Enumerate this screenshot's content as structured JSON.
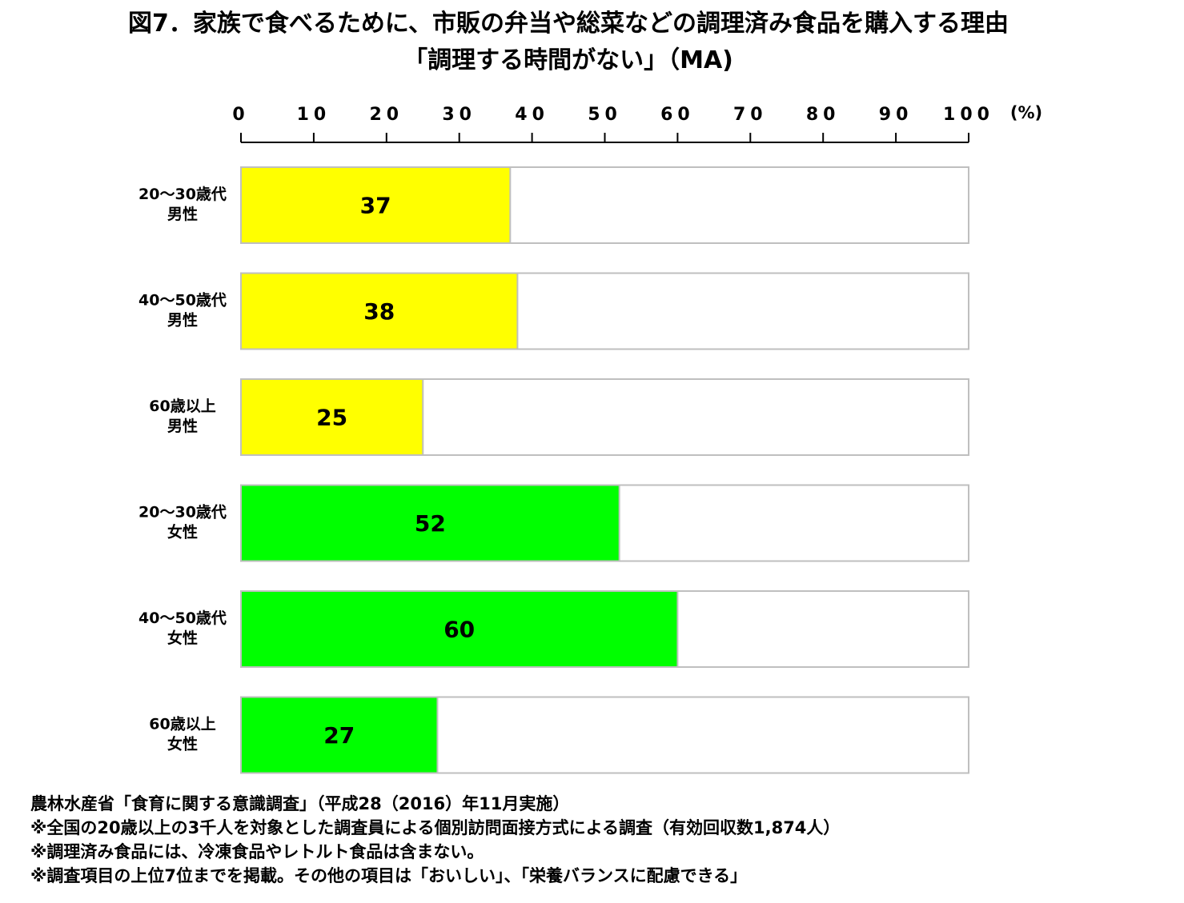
{
  "title_line1": "図7．家族で食べるために、市販の弁当や総菜などの調理済み食品を購入する理由",
  "title_line2": "「調理する時間がない」（MA)",
  "chart_data": {
    "type": "bar",
    "orientation": "horizontal",
    "x_ticks": [
      "0",
      "10",
      "20",
      "30",
      "40",
      "50",
      "60",
      "70",
      "80",
      "90",
      "100"
    ],
    "unit_label": "(%)",
    "xlim": [
      0,
      100
    ],
    "categories": [
      [
        "20～30歳代",
        "男性"
      ],
      [
        "40～50歳代",
        "男性"
      ],
      [
        "60歳以上",
        "男性"
      ],
      [
        "20～30歳代",
        "女性"
      ],
      [
        "40～50歳代",
        "女性"
      ],
      [
        "60歳以上",
        "女性"
      ]
    ],
    "values": [
      37,
      38,
      25,
      52,
      60,
      27
    ],
    "colors": [
      "#ffff00",
      "#ffff00",
      "#ffff00",
      "#00ff00",
      "#00ff00",
      "#00ff00"
    ],
    "data_labels": [
      "37",
      "38",
      "25",
      "52",
      "60",
      "27"
    ],
    "grid": false,
    "legend": "none"
  },
  "notes": [
    "農林水産省「食育に関する意識調査」（平成28（2016）年11月実施）",
    "※全国の20歳以上の3千人を対象とした調査員による個別訪問面接方式による調査（有効回収数1,874人）",
    "※調理済み食品には、冷凍食品やレトルト食品は含まない。",
    "※調査項目の上位7位までを掲載。その他の項目は「おいしい」、「栄養バランスに配慮できる」"
  ]
}
